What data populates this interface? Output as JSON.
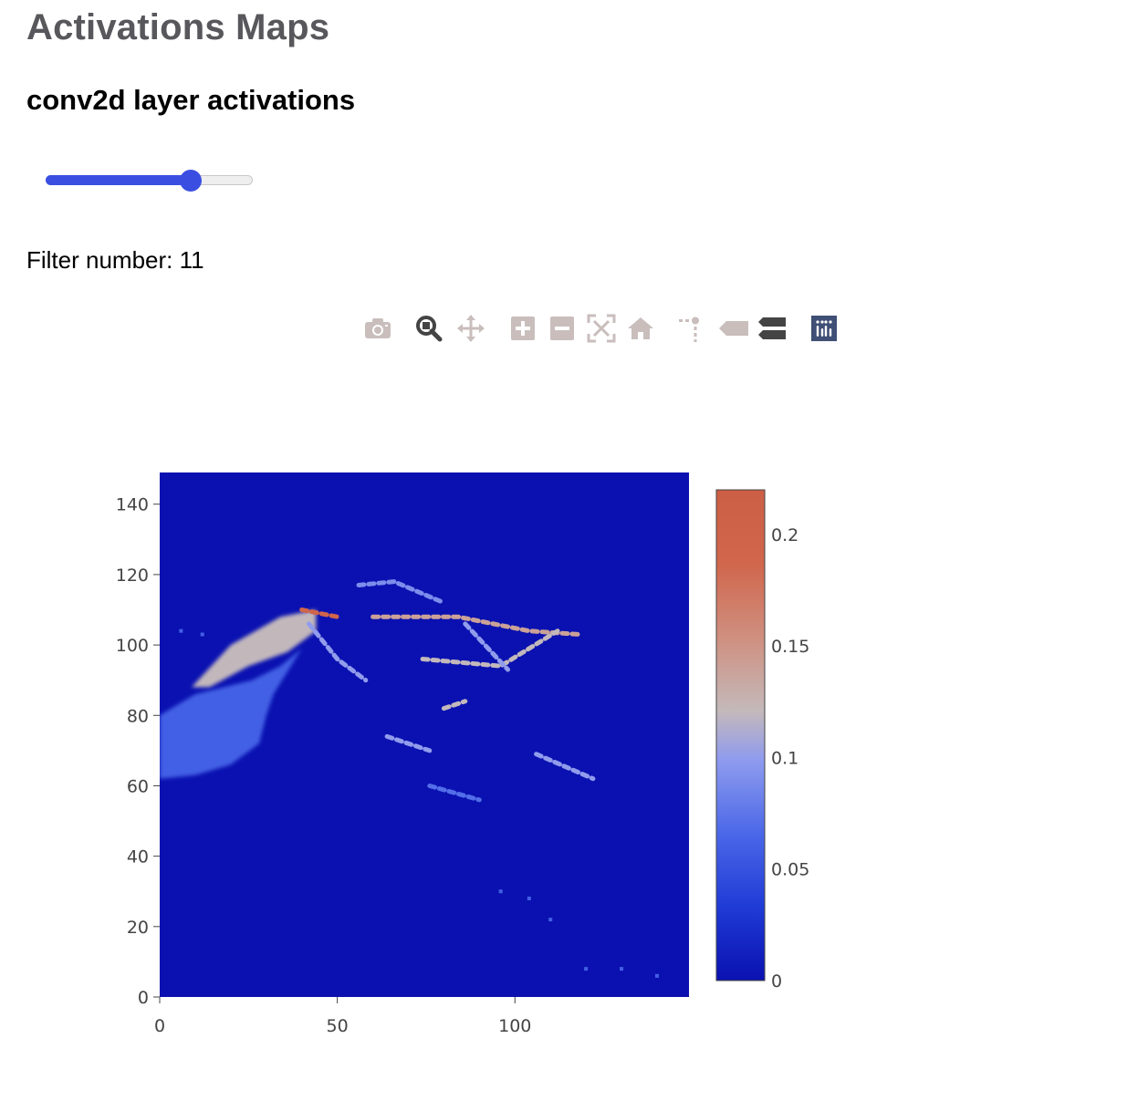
{
  "header": {
    "title": "Activations Maps",
    "subtitle": "conv2d layer activations"
  },
  "slider": {
    "value": 11,
    "min": 0,
    "max": 15,
    "fraction": 0.7
  },
  "filter": {
    "label": "Filter number: 11"
  },
  "modebar": {
    "buttons": [
      {
        "name": "camera-icon",
        "title": "Download plot as a png"
      },
      {
        "name": "zoom-icon",
        "title": "Zoom"
      },
      {
        "name": "pan-icon",
        "title": "Pan"
      },
      {
        "name": "zoom-in-icon",
        "title": "Zoom in"
      },
      {
        "name": "zoom-out-icon",
        "title": "Zoom out"
      },
      {
        "name": "autoscale-icon",
        "title": "Autoscale"
      },
      {
        "name": "home-icon",
        "title": "Reset axes"
      },
      {
        "name": "spike-lines-icon",
        "title": "Toggle Spike Lines"
      },
      {
        "name": "hover-closest-icon",
        "title": "Show closest data on hover"
      },
      {
        "name": "hover-compare-icon",
        "title": "Compare data on hover"
      },
      {
        "name": "plotly-logo-icon",
        "title": "Produced with Plotly"
      }
    ]
  },
  "chart_data": {
    "type": "heatmap",
    "title": "",
    "xlabel": "",
    "ylabel": "",
    "xlim": [
      0,
      149
    ],
    "ylim": [
      0,
      149
    ],
    "x_ticks": [
      0,
      50,
      100
    ],
    "y_ticks": [
      0,
      20,
      40,
      60,
      80,
      100,
      120,
      140
    ],
    "colorbar": {
      "range": [
        0,
        0.22
      ],
      "ticks": [
        0,
        0.05,
        0.1,
        0.15,
        0.2
      ],
      "tick_labels": [
        "0",
        "0.05",
        "0.1",
        "0.15",
        "0.2"
      ],
      "colorscale": [
        [
          0.0,
          "#0a11b0"
        ],
        [
          0.15,
          "#1f3bd6"
        ],
        [
          0.3,
          "#4b68e8"
        ],
        [
          0.45,
          "#8f9bee"
        ],
        [
          0.55,
          "#c4b9ba"
        ],
        [
          0.7,
          "#cf8f7f"
        ],
        [
          0.85,
          "#d0664c"
        ],
        [
          1.0,
          "#cc5f45"
        ]
      ]
    },
    "background_value": 0,
    "features": [
      {
        "kind": "blob",
        "desc": "large bright region",
        "points": [
          [
            9,
            88
          ],
          [
            20,
            100
          ],
          [
            34,
            108
          ],
          [
            44,
            110
          ],
          [
            44,
            104
          ],
          [
            36,
            98
          ],
          [
            25,
            94
          ],
          [
            14,
            88
          ]
        ],
        "value": 0.12
      },
      {
        "kind": "blob",
        "desc": "faint lower region",
        "points": [
          [
            0,
            62
          ],
          [
            0,
            80
          ],
          [
            10,
            86
          ],
          [
            26,
            90
          ],
          [
            34,
            94
          ],
          [
            40,
            99
          ],
          [
            32,
            86
          ],
          [
            30,
            80
          ],
          [
            28,
            72
          ],
          [
            20,
            66
          ],
          [
            10,
            63
          ]
        ],
        "value": 0.06
      },
      {
        "kind": "streak",
        "points": [
          [
            40,
            110
          ],
          [
            50,
            108
          ]
        ],
        "value": 0.19
      },
      {
        "kind": "streak",
        "points": [
          [
            42,
            106
          ],
          [
            50,
            96
          ],
          [
            58,
            90
          ]
        ],
        "value": 0.1
      },
      {
        "kind": "streak",
        "points": [
          [
            60,
            108
          ],
          [
            84,
            108
          ],
          [
            104,
            104
          ],
          [
            118,
            103
          ]
        ],
        "value": 0.14
      },
      {
        "kind": "streak",
        "points": [
          [
            56,
            117
          ],
          [
            66,
            118
          ],
          [
            80,
            112
          ]
        ],
        "value": 0.09
      },
      {
        "kind": "streak",
        "points": [
          [
            74,
            96
          ],
          [
            96,
            94
          ],
          [
            112,
            104
          ]
        ],
        "value": 0.12
      },
      {
        "kind": "streak",
        "points": [
          [
            86,
            106
          ],
          [
            98,
            93
          ]
        ],
        "value": 0.1
      },
      {
        "kind": "streak",
        "points": [
          [
            80,
            82
          ],
          [
            86,
            84
          ]
        ],
        "value": 0.12
      },
      {
        "kind": "streak",
        "points": [
          [
            64,
            74
          ],
          [
            76,
            70
          ]
        ],
        "value": 0.1
      },
      {
        "kind": "streak",
        "points": [
          [
            106,
            69
          ],
          [
            122,
            62
          ]
        ],
        "value": 0.1
      },
      {
        "kind": "streak",
        "points": [
          [
            76,
            60
          ],
          [
            90,
            56
          ]
        ],
        "value": 0.07
      },
      {
        "kind": "dots",
        "points": [
          [
            6,
            104
          ],
          [
            12,
            103
          ],
          [
            96,
            30
          ],
          [
            104,
            28
          ],
          [
            110,
            22
          ],
          [
            120,
            8
          ],
          [
            130,
            8
          ],
          [
            140,
            6
          ]
        ],
        "value": 0.06
      }
    ]
  }
}
